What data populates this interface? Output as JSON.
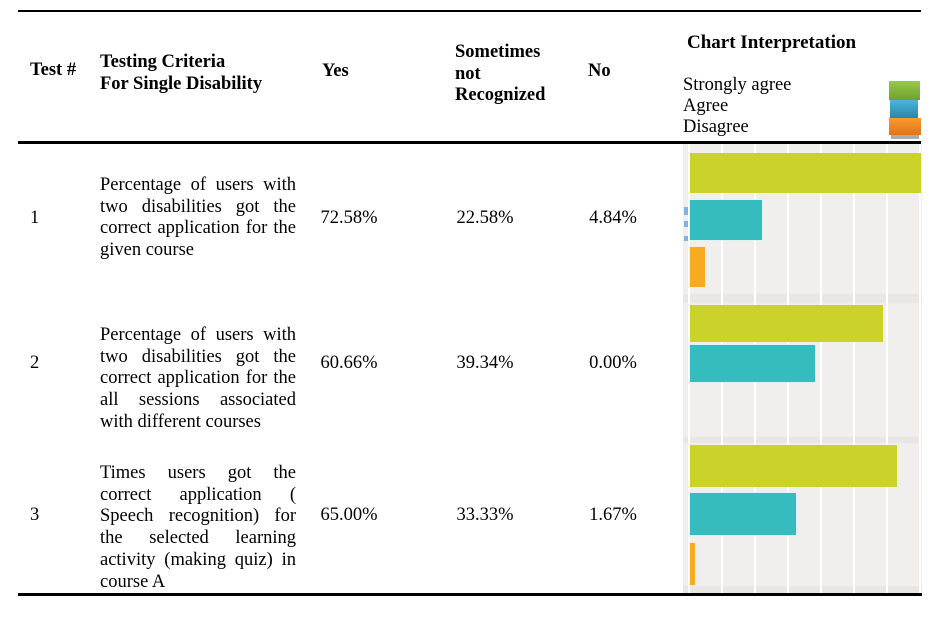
{
  "header": {
    "test": "Test #",
    "criteria": "Testing Criteria\nFor Single Disability",
    "yes": "Yes",
    "sometimes": "Sometimes\nnot\nRecognized",
    "no": "No",
    "chart": "Chart Interpretation"
  },
  "legend": {
    "items": [
      {
        "label": "Strongly agree",
        "color_top": "#97c94c",
        "color_bottom": "#6fa02c"
      },
      {
        "label": "Agree",
        "color_top": "#4db5da",
        "color_bottom": "#2887ae"
      },
      {
        "label": "Disagree",
        "color_top": "#f99b2c",
        "color_bottom": "#e0741a"
      }
    ],
    "partial_swatch_color": "#ababab"
  },
  "rows": [
    {
      "test": "1",
      "criteria": "Percentage of users with two disabilities got the correct application for the given course",
      "yes": "72.58%",
      "sometimes": "22.58%",
      "no": "4.84%"
    },
    {
      "test": "2",
      "criteria": "Percentage of users with two disabilities got the correct application for the all sessions associated with different courses",
      "yes": "60.66%",
      "sometimes": "39.34%",
      "no": "0.00%"
    },
    {
      "test": "3",
      "criteria": "Times users got the correct application ( Speech recognition) for the selected learning activity (making quiz) in course A",
      "yes": "65.00%",
      "sometimes": "33.33%",
      "no": "1.67%"
    }
  ],
  "chart_data": {
    "type": "bar",
    "orientation": "horizontal",
    "title": "Chart Interpretation",
    "legend_entries": [
      "Strongly agree",
      "Agree",
      "Disagree"
    ],
    "colors": [
      "#cbd32b",
      "#35bcbf",
      "#f8ab1e"
    ],
    "axis_max_percent": 72.58,
    "gridline_step_percent": 10,
    "grid": true,
    "legend_position": "top-right",
    "charts": [
      {
        "test": "1",
        "values": [
          72.58,
          22.58,
          4.84
        ]
      },
      {
        "test": "2",
        "values": [
          60.66,
          39.34,
          0.0
        ]
      },
      {
        "test": "3",
        "values": [
          65.0,
          33.33,
          1.67
        ]
      }
    ]
  }
}
